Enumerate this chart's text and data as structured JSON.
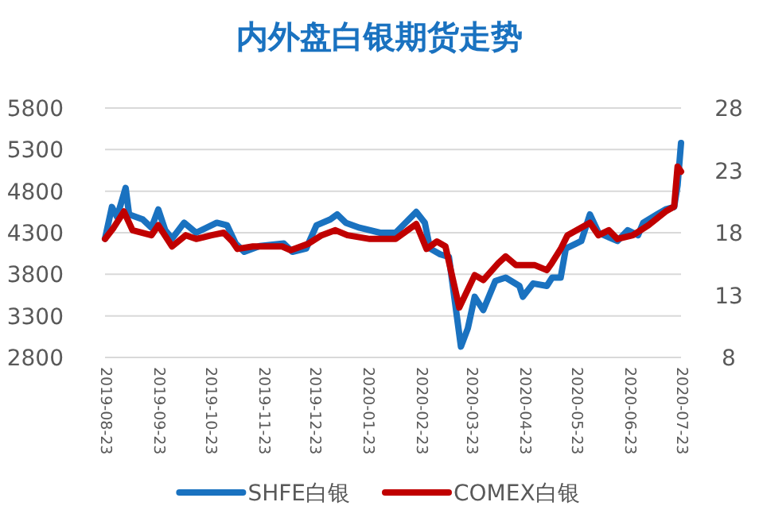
{
  "chart_data": {
    "type": "line",
    "title": "内外盘白银期货走势",
    "legend": "bottom",
    "grid": "y",
    "xlim": [
      "2019-08-23",
      "2020-07-23"
    ],
    "xticks": [
      "2019-08-23",
      "2019-09-23",
      "2019-10-23",
      "2019-11-23",
      "2019-12-23",
      "2020-01-23",
      "2020-02-23",
      "2020-03-23",
      "2020-04-23",
      "2020-05-23",
      "2020-06-23",
      "2020-07-23"
    ],
    "ylim": [
      2800,
      5800
    ],
    "yticks": [
      2800,
      3300,
      3800,
      4300,
      4800,
      5300,
      5800
    ],
    "y2lim": [
      8,
      28
    ],
    "y2ticks": [
      8,
      13,
      18,
      23,
      28
    ],
    "series": [
      {
        "name": "SHFE白银",
        "color": "#1a72c0",
        "x": [
          "2019-08-23",
          "2019-08-27",
          "2019-08-30",
          "2019-09-04",
          "2019-09-06",
          "2019-09-14",
          "2019-09-19",
          "2019-09-23",
          "2019-09-27",
          "2019-10-01",
          "2019-10-08",
          "2019-10-15",
          "2019-10-27",
          "2019-11-02",
          "2019-11-07",
          "2019-11-12",
          "2019-11-21",
          "2019-12-05",
          "2019-12-10",
          "2019-12-18",
          "2019-12-24",
          "2020-01-01",
          "2020-01-05",
          "2020-01-10",
          "2020-01-18",
          "2020-01-30",
          "2020-02-08",
          "2020-02-20",
          "2020-02-25",
          "2020-02-28",
          "2020-03-05",
          "2020-03-10",
          "2020-03-17",
          "2020-03-21",
          "2020-03-25",
          "2020-03-30",
          "2020-04-06",
          "2020-04-12",
          "2020-04-20",
          "2020-04-22",
          "2020-04-28",
          "2020-05-06",
          "2020-05-09",
          "2020-05-14",
          "2020-05-17",
          "2020-05-23",
          "2020-05-26",
          "2020-05-31",
          "2020-06-05",
          "2020-06-16",
          "2020-06-22",
          "2020-06-28",
          "2020-07-01",
          "2020-07-09",
          "2020-07-14",
          "2020-07-19",
          "2020-07-21",
          "2020-07-23"
        ],
        "values": [
          4230,
          4610,
          4490,
          4840,
          4520,
          4460,
          4360,
          4580,
          4330,
          4230,
          4420,
          4300,
          4420,
          4390,
          4170,
          4070,
          4140,
          4170,
          4070,
          4110,
          4390,
          4460,
          4520,
          4420,
          4360,
          4300,
          4300,
          4550,
          4420,
          4110,
          4040,
          4010,
          2930,
          3150,
          3530,
          3370,
          3720,
          3760,
          3660,
          3530,
          3690,
          3660,
          3760,
          3760,
          4110,
          4170,
          4200,
          4520,
          4300,
          4200,
          4330,
          4270,
          4420,
          4520,
          4580,
          4610,
          4870,
          5380
        ]
      },
      {
        "name": "COMEX白银",
        "color": "#c00000",
        "axis": "y2",
        "x": [
          "2019-08-23",
          "2019-08-28",
          "2019-09-03",
          "2019-09-08",
          "2019-09-19",
          "2019-09-23",
          "2019-10-01",
          "2019-10-09",
          "2019-10-15",
          "2019-10-24",
          "2019-10-31",
          "2019-11-05",
          "2019-11-08",
          "2019-11-17",
          "2019-12-04",
          "2019-12-09",
          "2019-12-19",
          "2019-12-27",
          "2020-01-04",
          "2020-01-11",
          "2020-01-24",
          "2020-02-08",
          "2020-02-13",
          "2020-02-20",
          "2020-02-26",
          "2020-03-03",
          "2020-03-08",
          "2020-03-16",
          "2020-03-25",
          "2020-03-30",
          "2020-04-08",
          "2020-04-12",
          "2020-04-18",
          "2020-04-29",
          "2020-05-06",
          "2020-05-09",
          "2020-05-14",
          "2020-05-18",
          "2020-05-31",
          "2020-06-05",
          "2020-06-11",
          "2020-06-16",
          "2020-06-25",
          "2020-07-04",
          "2020-07-14",
          "2020-07-19",
          "2020-07-21",
          "2020-07-23"
        ],
        "values": [
          17.5,
          18.4,
          19.7,
          18.2,
          17.8,
          18.6,
          16.9,
          17.8,
          17.5,
          17.8,
          18.0,
          17.3,
          16.7,
          16.9,
          16.9,
          16.6,
          17.1,
          17.8,
          18.2,
          17.8,
          17.5,
          17.5,
          18.0,
          18.7,
          16.7,
          17.3,
          16.9,
          12.0,
          14.6,
          14.2,
          15.6,
          16.1,
          15.4,
          15.4,
          15.0,
          15.6,
          16.7,
          17.8,
          18.8,
          17.8,
          18.2,
          17.5,
          17.8,
          18.6,
          19.7,
          20.1,
          23.3,
          22.9
        ]
      }
    ]
  }
}
